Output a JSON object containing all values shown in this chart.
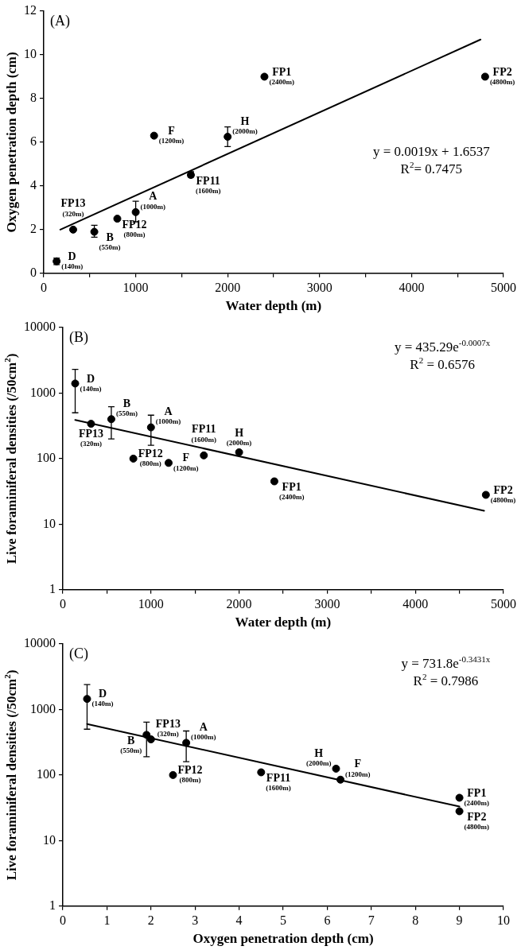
{
  "chart_data": [
    {
      "type": "scatter",
      "title": "(A)",
      "xlabel": "Water depth (m)",
      "ylabel": "Oxygen penetration depth (cm)",
      "xlim": [
        0,
        5000
      ],
      "xticks": [
        0,
        {
          "value": 500,
          "label": null
        },
        1000,
        {
          "value": 1500,
          "label": null
        },
        2000,
        {
          "value": 2500,
          "label": null
        },
        3000,
        {
          "value": 3500,
          "label": null
        },
        4000,
        {
          "value": 4500,
          "label": null
        },
        5000
      ],
      "ylim": [
        0,
        12
      ],
      "yticks": [
        0,
        2,
        4,
        6,
        8,
        10,
        12
      ],
      "series": [
        {
          "type": "scatter",
          "marker": "circle",
          "color": "#000000",
          "x": [
            140,
            320,
            550,
            800,
            1000,
            1200,
            1600,
            2000,
            2400,
            4800
          ],
          "values": [
            0.55,
            2.0,
            1.9,
            2.5,
            2.8,
            6.3,
            4.5,
            6.25,
            9.0,
            9.0
          ],
          "errors": [
            [
              0.4,
              0.7
            ],
            null,
            [
              1.65,
              2.2
            ],
            null,
            [
              2.35,
              3.3
            ],
            null,
            [
              4.4,
              4.65
            ],
            [
              5.8,
              6.7
            ],
            null,
            null
          ]
        },
        {
          "type": "line",
          "color": "#000000",
          "x": [
            180,
            4750
          ],
          "values": [
            2.0,
            10.7
          ]
        }
      ],
      "annotations": [
        "y = 0.0019x + 1.6537",
        "R$^{2}$= 0.7475",
        {
          "text": "D\n(140m)",
          "x": 140,
          "y": 0.55
        },
        {
          "text": "FP13\n(320m)",
          "x": 320,
          "y": 2.0
        },
        {
          "text": "B\n(550m)",
          "x": 550,
          "y": 1.9
        },
        {
          "text": "FP12\n(800m)",
          "x": 800,
          "y": 2.5
        },
        {
          "text": "A\n(1000m)",
          "x": 1000,
          "y": 2.8
        },
        {
          "text": "F\n(1200m)",
          "x": 1200,
          "y": 6.3
        },
        {
          "text": "FP11\n(1600m)",
          "x": 1600,
          "y": 4.5
        },
        {
          "text": "H\n(2000m)",
          "x": 2000,
          "y": 6.25
        },
        {
          "text": "FP1\n(2400m)",
          "x": 2400,
          "y": 9.0
        },
        {
          "text": "FP2\n(4800m)",
          "x": 4800,
          "y": 9.0
        }
      ]
    },
    {
      "type": "scatter",
      "title": "(B)",
      "xlabel": "Water depth (m)",
      "ylabel": "Live foraminiferal densities (/50cm$^{2}$)",
      "log": "y",
      "xlim": [
        0,
        5000
      ],
      "xticks": [
        0,
        {
          "value": 500,
          "label": null
        },
        1000,
        {
          "value": 1500,
          "label": null
        },
        2000,
        {
          "value": 2500,
          "label": null
        },
        3000,
        {
          "value": 3500,
          "label": null
        },
        4000,
        {
          "value": 4500,
          "label": null
        },
        5000
      ],
      "ylim": [
        1,
        10000
      ],
      "yticks": [
        1,
        10,
        100,
        1000,
        10000
      ],
      "series": [
        {
          "type": "scatter",
          "marker": "circle",
          "color": "#000000",
          "x": [
            140,
            320,
            550,
            800,
            1000,
            1200,
            1600,
            2000,
            2400,
            4800
          ],
          "values": [
            1400,
            340,
            400,
            100,
            300,
            86,
            112,
            125,
            45,
            28
          ],
          "errors": [
            [
              500,
              2300
            ],
            null,
            [
              200,
              620
            ],
            null,
            [
              160,
              460
            ],
            null,
            null,
            null,
            null,
            null
          ]
        },
        {
          "type": "line",
          "color": "#000000",
          "x": [
            140,
            4780
          ],
          "values": [
            390,
            16
          ]
        }
      ],
      "annotations": [
        "y = 435.29e$^{-0.0007x}$",
        "R$^{2}$ = 0.6576",
        {
          "text": "D\n(140m)",
          "x": 140,
          "y": 1400
        },
        {
          "text": "FP13\n(320m)",
          "x": 320,
          "y": 340
        },
        {
          "text": "B\n(550m)",
          "x": 550,
          "y": 400
        },
        {
          "text": "FP12\n(800m)",
          "x": 800,
          "y": 100
        },
        {
          "text": "A\n(1000m)",
          "x": 1000,
          "y": 300
        },
        {
          "text": "F\n(1200m)",
          "x": 1200,
          "y": 86
        },
        {
          "text": "FP11\n(1600m)",
          "x": 1600,
          "y": 112
        },
        {
          "text": "H\n(2000m)",
          "x": 2000,
          "y": 125
        },
        {
          "text": "FP1\n(2400m)",
          "x": 2400,
          "y": 45
        },
        {
          "text": "FP2\n(4800m)",
          "x": 4800,
          "y": 28
        }
      ]
    },
    {
      "type": "scatter",
      "title": "(C)",
      "xlabel": "Oxygen penetration depth (cm)",
      "ylabel": "Live foraminiferal densities (/50cm$^{2}$)",
      "log": "y",
      "xlim": [
        0,
        10
      ],
      "xticks": [
        0,
        1,
        2,
        3,
        4,
        5,
        6,
        7,
        8,
        9,
        10
      ],
      "ylim": [
        1,
        10000
      ],
      "yticks": [
        1,
        10,
        100,
        1000,
        10000
      ],
      "series": [
        {
          "type": "scatter",
          "marker": "circle",
          "color": "#000000",
          "x": [
            0.55,
            2.0,
            1.9,
            2.5,
            2.8,
            6.3,
            4.5,
            6.2,
            9.0,
            9.0
          ],
          "values": [
            1450,
            350,
            410,
            100,
            310,
            85,
            110,
            125,
            45,
            28
          ],
          "errors": [
            [
              500,
              2400
            ],
            null,
            [
              190,
              640
            ],
            null,
            [
              160,
              470
            ],
            null,
            null,
            null,
            null,
            null
          ]
        },
        {
          "type": "line",
          "color": "#000000",
          "x": [
            0.55,
            9.0
          ],
          "values": [
            600,
            33
          ]
        }
      ],
      "annotations": [
        "y = 731.8e$^{-0.3431x}$",
        "R$^{2}$ = 0.7986",
        {
          "text": "D\n(140m)",
          "x": 0.55,
          "y": 1450
        },
        {
          "text": "FP13\n(320m)",
          "x": 2.0,
          "y": 350
        },
        {
          "text": "B\n(550m)",
          "x": 1.9,
          "y": 410
        },
        {
          "text": "FP12\n(800m)",
          "x": 2.5,
          "y": 100
        },
        {
          "text": "A\n(1000m)",
          "x": 2.8,
          "y": 310
        },
        {
          "text": "F\n(1200m)",
          "x": 6.3,
          "y": 85
        },
        {
          "text": "FP11\n(1600m)",
          "x": 4.5,
          "y": 110
        },
        {
          "text": "H\n(2000m)",
          "x": 6.2,
          "y": 125
        },
        {
          "text": "FP1\n(2400m)",
          "x": 9.0,
          "y": 45
        },
        {
          "text": "FP2\n(4800m)",
          "x": 9.0,
          "y": 28
        }
      ]
    }
  ]
}
